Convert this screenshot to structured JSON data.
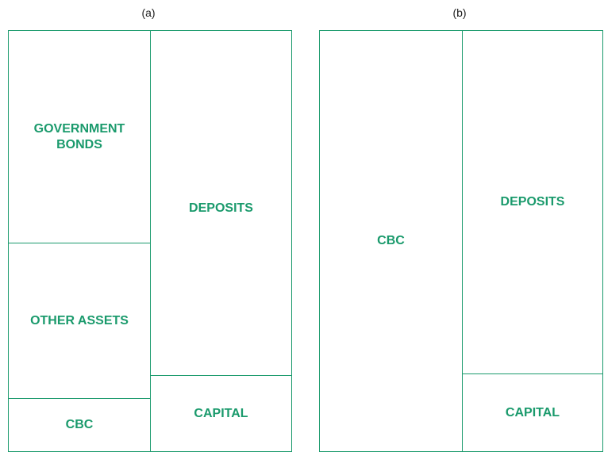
{
  "panels": [
    {
      "label": "(a)",
      "assets": [
        "GOVERNMENT BONDS",
        "OTHER ASSETS",
        "CBC"
      ],
      "liabilities": [
        "DEPOSITS",
        "CAPITAL"
      ]
    },
    {
      "label": "(b)",
      "assets": [
        "CBC"
      ],
      "liabilities": [
        "DEPOSITS",
        "CAPITAL"
      ]
    }
  ]
}
